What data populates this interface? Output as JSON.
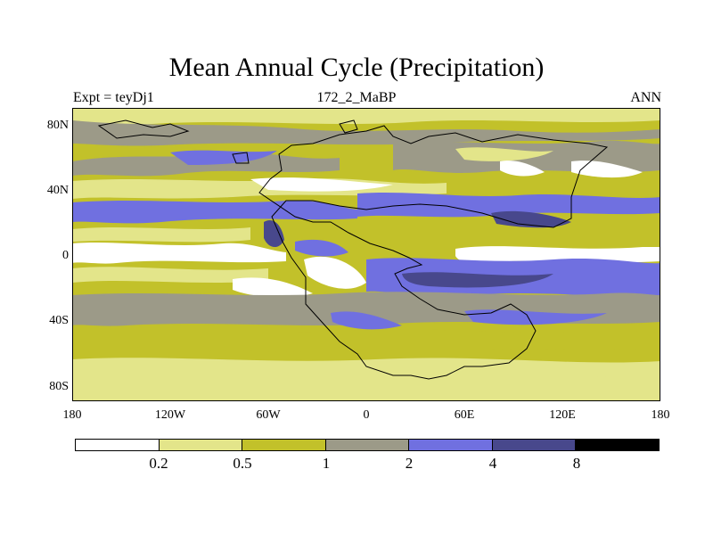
{
  "title": "Mean Annual Cycle (Precipitation)",
  "subtitle_left": "Expt = teyDj1",
  "subtitle_center": "172_2_MaBP",
  "subtitle_right": "ANN",
  "y_labels": [
    "80N",
    "40N",
    "0",
    "40S",
    "80S"
  ],
  "x_labels": [
    "180",
    "120W",
    "60W",
    "0",
    "60E",
    "120E",
    "180"
  ],
  "colorbar": {
    "colors": [
      "#ffffff",
      "#e3e58a",
      "#c2c12a",
      "#9c9a88",
      "#7070e0",
      "#48488c",
      "#000000"
    ],
    "labels": [
      "0.2",
      "0.5",
      "1",
      "2",
      "4",
      "8"
    ]
  },
  "map_colors": {
    "very_low": "#ffffff",
    "low": "#e3e58a",
    "mid_low": "#c2c12a",
    "mid": "#9c9a88",
    "high": "#7070e0",
    "very_high": "#48488c",
    "coast": "#000000"
  }
}
